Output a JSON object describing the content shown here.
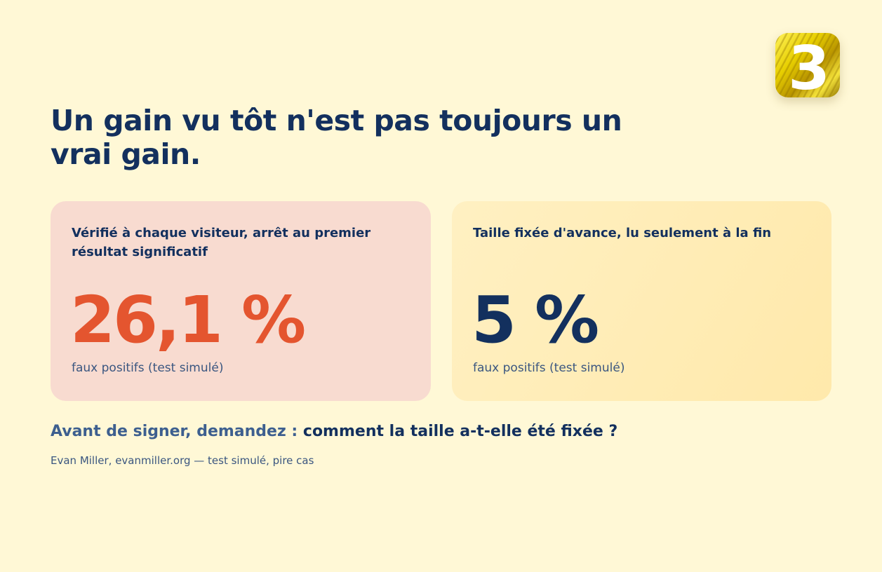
{
  "logo": {
    "name": "logo-3-icon",
    "text": "3"
  },
  "headline": "Un gain vu tôt n'est pas toujours un vrai gain.",
  "cards": [
    {
      "label": "Vérifié à chaque visiteur, arrêt au premier résultat significatif",
      "value": "26,1 %",
      "caption": "faux positifs (test simulé)",
      "value_color": "#e4552f",
      "background": "#f8dbd0"
    },
    {
      "label": "Taille fixée d'avance, lu seulement à la fin",
      "value": "5 %",
      "caption": "faux positifs (test simulé)",
      "value_color": "#13305e",
      "background": "#ffeeb8"
    }
  ],
  "question": {
    "lead": "Avant de signer, demandez :",
    "main": "comment la taille a-t-elle été fixée ?"
  },
  "source": "Evan Miller, evanmiller.org — test simulé, pire cas",
  "colors": {
    "background": "#fff8d6",
    "navy": "#13305e",
    "accent": "#e4552f"
  }
}
